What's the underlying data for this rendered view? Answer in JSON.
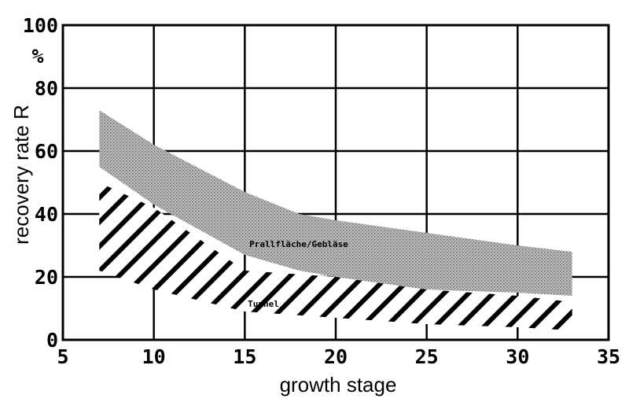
{
  "chart_data": {
    "type": "area",
    "xlabel": "growth stage",
    "ylabel": "recovery rate R",
    "y_unit": "%",
    "xlim": [
      5,
      35
    ],
    "ylim": [
      0,
      100
    ],
    "x_ticks": [
      5,
      10,
      15,
      20,
      25,
      30,
      35
    ],
    "y_ticks": [
      0,
      20,
      40,
      60,
      80,
      100
    ],
    "grid": true,
    "series": [
      {
        "name": "Prallfläche/Gebläse",
        "fill": "dotted-gray",
        "x": [
          7,
          10,
          15,
          18,
          20,
          25,
          30,
          33
        ],
        "upper": [
          73,
          62,
          47,
          40,
          38,
          34,
          30,
          28
        ],
        "lower": [
          55,
          43,
          27,
          22,
          20,
          16,
          15,
          14
        ]
      },
      {
        "name": "Tunnel",
        "fill": "hatched",
        "x": [
          7,
          10,
          15,
          20,
          25,
          30,
          33
        ],
        "upper": [
          50,
          42,
          22,
          20,
          16,
          14,
          12
        ],
        "lower": [
          22,
          16,
          9,
          7,
          5,
          4,
          3
        ]
      }
    ]
  }
}
